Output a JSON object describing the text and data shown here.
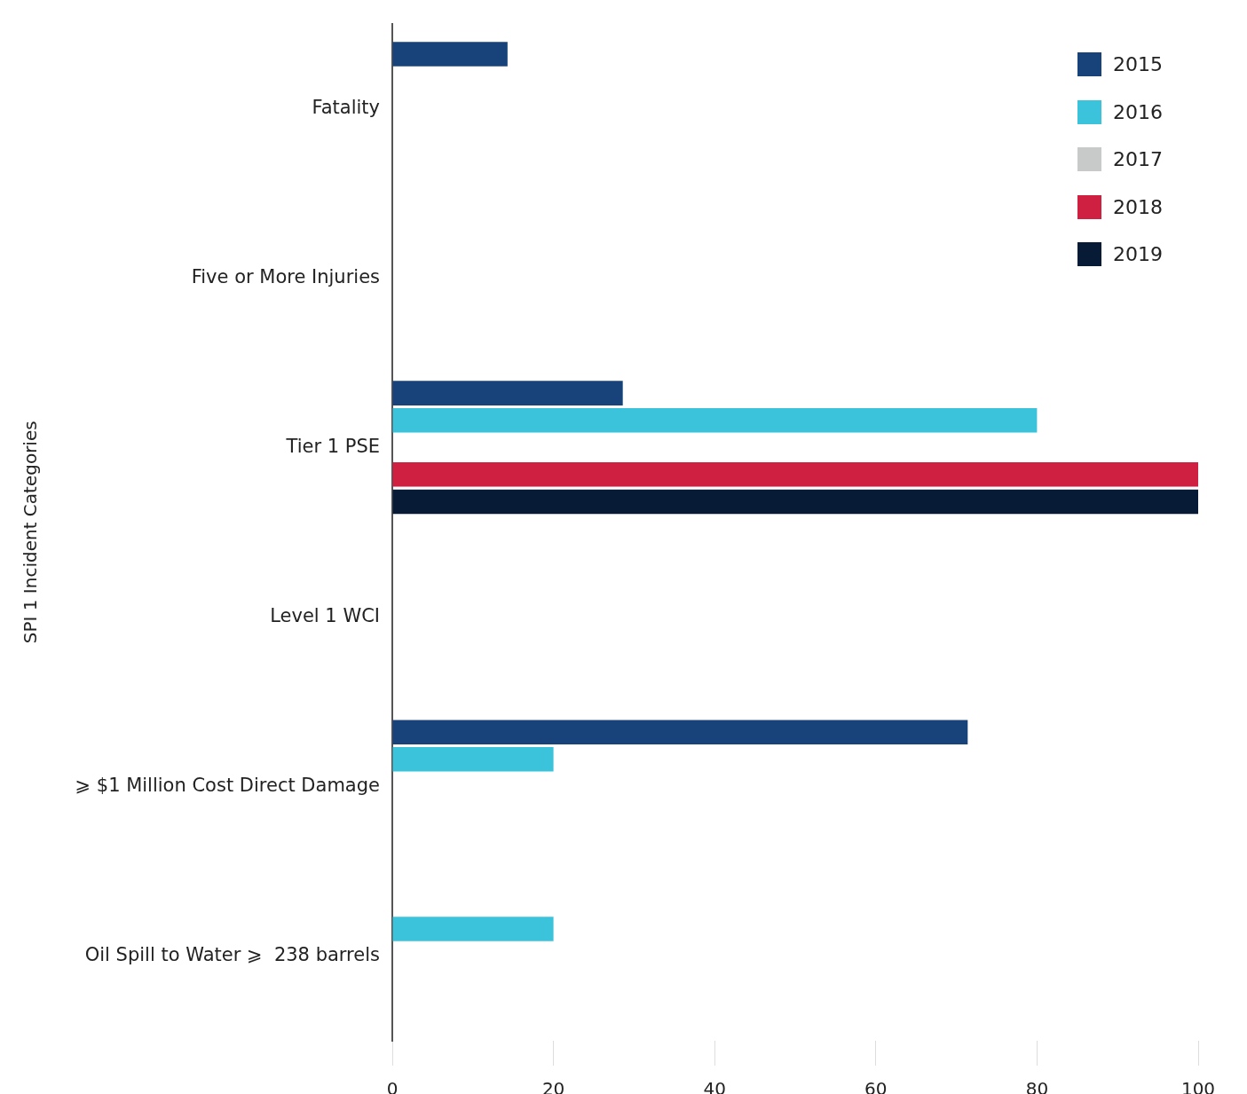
{
  "chart_data": {
    "type": "bar",
    "orientation": "horizontal",
    "ylabel": "SPI 1 Incident Categories",
    "categories": [
      "Fatality",
      "Five or More Injuries",
      "Tier 1 PSE",
      "Level 1 WCI",
      "⩾ $1 Million Cost Direct Damage",
      "Oil Spill to Water ⩾  238 barrels"
    ],
    "series": [
      {
        "name": "2015",
        "color": "#17437a",
        "values": [
          14.3,
          null,
          28.6,
          null,
          71.4,
          null
        ]
      },
      {
        "name": "2016",
        "color": "#3cc3dc",
        "values": [
          null,
          null,
          80,
          null,
          20,
          20
        ]
      },
      {
        "name": "2017",
        "color": "#c8c9c9",
        "values": [
          null,
          null,
          null,
          null,
          null,
          null
        ]
      },
      {
        "name": "2018",
        "color": "#cf2042",
        "values": [
          null,
          null,
          100,
          null,
          null,
          null
        ]
      },
      {
        "name": "2019",
        "color": "#081b36",
        "values": [
          null,
          null,
          100,
          null,
          null,
          null
        ]
      }
    ],
    "xlim": [
      0,
      100
    ],
    "xticks": [
      0,
      20,
      40,
      60,
      80,
      100
    ],
    "grid": false,
    "legend": "top right"
  }
}
